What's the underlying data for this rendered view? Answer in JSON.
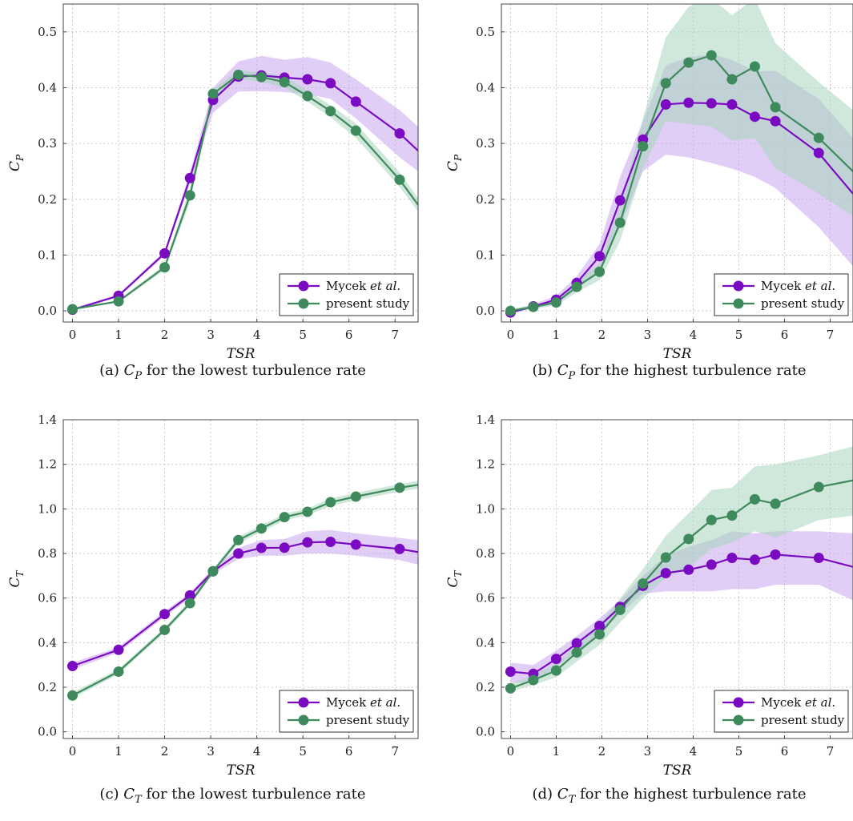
{
  "colors": {
    "mycek": "#7a0bc0",
    "present": "#3f8a5c",
    "mycek_band": "#c9a6ee",
    "present_band": "#a8d5bd"
  },
  "chart_data": [
    {
      "type": "line",
      "caption_prefix": "(a)",
      "caption_var": "C",
      "caption_sub": "P",
      "caption_rest": "for the lowest turbulence rate",
      "xlabel": "TSR",
      "ylabel_main": "C",
      "ylabel_sub": "P",
      "xlim": [
        -0.2,
        7.5
      ],
      "ylim": [
        -0.02,
        0.55
      ],
      "xticks": [
        0,
        1,
        2,
        3,
        4,
        5,
        6,
        7
      ],
      "xtick_labels": [
        "0",
        "1",
        "2",
        "3",
        "4",
        "5",
        "6",
        "7"
      ],
      "yticks": [
        0.0,
        0.1,
        0.2,
        0.3,
        0.4,
        0.5
      ],
      "ytick_labels": [
        "0.0",
        "0.1",
        "0.2",
        "0.3",
        "0.4",
        "0.5"
      ],
      "legend": {
        "placement": "bottom-right",
        "entries": [
          "Mycek et al.",
          "present study"
        ]
      },
      "series": [
        {
          "name": "Mycek et al.",
          "color": "mycek",
          "x": [
            0,
            1,
            2,
            2.55,
            3.05,
            3.6,
            4.1,
            4.6,
            5.1,
            5.6,
            6.15,
            7.1,
            7.5
          ],
          "y": [
            0.002,
            0.027,
            0.103,
            0.238,
            0.378,
            0.42,
            0.422,
            0.418,
            0.415,
            0.408,
            0.375,
            0.318,
            0.287
          ],
          "band_lo": [
            0.002,
            0.025,
            0.099,
            0.228,
            0.355,
            0.393,
            0.394,
            0.392,
            0.388,
            0.38,
            0.345,
            0.275,
            0.25
          ],
          "band_hi": [
            0.004,
            0.03,
            0.107,
            0.248,
            0.4,
            0.447,
            0.457,
            0.45,
            0.455,
            0.445,
            0.415,
            0.36,
            0.33
          ],
          "markers": 12
        },
        {
          "name": "present study",
          "color": "present",
          "x": [
            0,
            1,
            2,
            2.55,
            3.05,
            3.6,
            4.1,
            4.6,
            5.1,
            5.6,
            6.15,
            7.1,
            7.5
          ],
          "y": [
            0.003,
            0.017,
            0.078,
            0.207,
            0.389,
            0.423,
            0.419,
            0.41,
            0.385,
            0.358,
            0.323,
            0.235,
            0.19
          ],
          "band_lo": [
            0.002,
            0.015,
            0.073,
            0.195,
            0.38,
            0.415,
            0.41,
            0.4,
            0.375,
            0.347,
            0.31,
            0.222,
            0.178
          ],
          "band_hi": [
            0.004,
            0.019,
            0.083,
            0.22,
            0.397,
            0.431,
            0.428,
            0.42,
            0.395,
            0.369,
            0.336,
            0.248,
            0.202
          ],
          "markers": 12
        }
      ]
    },
    {
      "type": "line",
      "caption_prefix": "(b)",
      "caption_var": "C",
      "caption_sub": "P",
      "caption_rest": "for the highest turbulence rate",
      "xlabel": "TSR",
      "ylabel_main": "C",
      "ylabel_sub": "P",
      "xlim": [
        -0.2,
        7.5
      ],
      "ylim": [
        -0.02,
        0.55
      ],
      "xticks": [
        0,
        1,
        2,
        3,
        4,
        5,
        6,
        7
      ],
      "xtick_labels": [
        "0",
        "1",
        "2",
        "3",
        "4",
        "5",
        "6",
        "7"
      ],
      "yticks": [
        0.0,
        0.1,
        0.2,
        0.3,
        0.4,
        0.5
      ],
      "ytick_labels": [
        "0.0",
        "0.1",
        "0.2",
        "0.3",
        "0.4",
        "0.5"
      ],
      "legend": {
        "placement": "bottom-right",
        "entries": [
          "Mycek et al.",
          "present study"
        ]
      },
      "series": [
        {
          "name": "Mycek et al.",
          "color": "mycek",
          "x": [
            0,
            0.5,
            1,
            1.45,
            1.95,
            2.4,
            2.9,
            3.4,
            3.9,
            4.4,
            4.85,
            5.35,
            5.8,
            6.75,
            7.5
          ],
          "y": [
            -0.003,
            0.008,
            0.02,
            0.05,
            0.098,
            0.198,
            0.307,
            0.37,
            0.373,
            0.372,
            0.37,
            0.348,
            0.34,
            0.283,
            0.21
          ],
          "band_lo": [
            -0.005,
            0.004,
            0.013,
            0.038,
            0.075,
            0.15,
            0.25,
            0.28,
            0.275,
            0.265,
            0.255,
            0.24,
            0.22,
            0.15,
            0.08
          ],
          "band_hi": [
            0.0,
            0.012,
            0.027,
            0.062,
            0.12,
            0.24,
            0.34,
            0.44,
            0.455,
            0.46,
            0.45,
            0.43,
            0.43,
            0.38,
            0.31
          ],
          "markers": 14
        },
        {
          "name": "present study",
          "color": "present",
          "x": [
            0,
            0.5,
            1,
            1.45,
            1.95,
            2.4,
            2.9,
            3.4,
            3.9,
            4.4,
            4.85,
            5.35,
            5.8,
            6.75,
            7.5
          ],
          "y": [
            0.0,
            0.007,
            0.015,
            0.043,
            0.07,
            0.158,
            0.295,
            0.408,
            0.445,
            0.458,
            0.415,
            0.438,
            0.365,
            0.31,
            0.25
          ],
          "band_lo": [
            -0.003,
            0.003,
            0.01,
            0.033,
            0.055,
            0.125,
            0.255,
            0.34,
            0.335,
            0.33,
            0.305,
            0.31,
            0.255,
            0.21,
            0.17
          ],
          "band_hi": [
            0.003,
            0.011,
            0.02,
            0.053,
            0.085,
            0.19,
            0.345,
            0.49,
            0.545,
            0.56,
            0.53,
            0.56,
            0.48,
            0.41,
            0.36
          ],
          "markers": 14
        }
      ]
    },
    {
      "type": "line",
      "caption_prefix": "(c)",
      "caption_var": "C",
      "caption_sub": "T",
      "caption_rest": "for the lowest turbulence rate",
      "xlabel": "TSR",
      "ylabel_main": "C",
      "ylabel_sub": "T",
      "xlim": [
        -0.2,
        7.5
      ],
      "ylim": [
        -0.03,
        1.4
      ],
      "xticks": [
        0,
        1,
        2,
        3,
        4,
        5,
        6,
        7
      ],
      "xtick_labels": [
        "0",
        "1",
        "2",
        "3",
        "4",
        "5",
        "6",
        "7"
      ],
      "yticks": [
        0.0,
        0.2,
        0.4,
        0.6,
        0.8,
        1.0,
        1.2,
        1.4
      ],
      "ytick_labels": [
        "0.0",
        "0.2",
        "0.4",
        "0.6",
        "0.8",
        "1.0",
        "1.2",
        "1.4"
      ],
      "legend": {
        "placement": "bottom-right",
        "entries": [
          "Mycek et al.",
          "present study"
        ]
      },
      "series": [
        {
          "name": "Mycek et al.",
          "color": "mycek",
          "x": [
            0,
            1,
            2,
            2.55,
            3.05,
            3.6,
            4.1,
            4.6,
            5.1,
            5.6,
            6.15,
            7.1,
            7.5
          ],
          "y": [
            0.295,
            0.368,
            0.528,
            0.612,
            0.72,
            0.8,
            0.825,
            0.826,
            0.85,
            0.852,
            0.84,
            0.82,
            0.806
          ],
          "band_lo": [
            0.28,
            0.355,
            0.515,
            0.6,
            0.707,
            0.775,
            0.79,
            0.79,
            0.8,
            0.8,
            0.79,
            0.77,
            0.75
          ],
          "band_hi": [
            0.31,
            0.38,
            0.541,
            0.624,
            0.733,
            0.825,
            0.86,
            0.865,
            0.9,
            0.905,
            0.89,
            0.87,
            0.86
          ],
          "markers": 12
        },
        {
          "name": "present study",
          "color": "present",
          "x": [
            0,
            1,
            2,
            2.55,
            3.05,
            3.6,
            4.1,
            4.6,
            5.1,
            5.6,
            6.15,
            7.1,
            7.5
          ],
          "y": [
            0.163,
            0.27,
            0.457,
            0.577,
            0.72,
            0.86,
            0.912,
            0.963,
            0.987,
            1.03,
            1.055,
            1.095,
            1.108
          ],
          "band_lo": [
            0.15,
            0.258,
            0.445,
            0.565,
            0.71,
            0.845,
            0.897,
            0.948,
            0.972,
            1.013,
            1.038,
            1.078,
            1.09
          ],
          "band_hi": [
            0.176,
            0.282,
            0.469,
            0.589,
            0.73,
            0.875,
            0.927,
            0.978,
            1.002,
            1.047,
            1.072,
            1.112,
            1.126
          ],
          "markers": 12
        }
      ]
    },
    {
      "type": "line",
      "caption_prefix": "(d)",
      "caption_var": "C",
      "caption_sub": "T",
      "caption_rest": "for the highest turbulence rate",
      "xlabel": "TSR",
      "ylabel_main": "C",
      "ylabel_sub": "T",
      "xlim": [
        -0.2,
        7.5
      ],
      "ylim": [
        -0.03,
        1.4
      ],
      "xticks": [
        0,
        1,
        2,
        3,
        4,
        5,
        6,
        7
      ],
      "xtick_labels": [
        "0",
        "1",
        "2",
        "3",
        "4",
        "5",
        "6",
        "7"
      ],
      "yticks": [
        0.0,
        0.2,
        0.4,
        0.6,
        0.8,
        1.0,
        1.2,
        1.4
      ],
      "ytick_labels": [
        "0.0",
        "0.2",
        "0.4",
        "0.6",
        "0.8",
        "1.0",
        "1.2",
        "1.4"
      ],
      "legend": {
        "placement": "bottom-right",
        "entries": [
          "Mycek et al.",
          "present study"
        ]
      },
      "series": [
        {
          "name": "Mycek et al.",
          "color": "mycek",
          "x": [
            0,
            0.5,
            1,
            1.45,
            1.95,
            2.4,
            2.9,
            3.4,
            3.9,
            4.4,
            4.85,
            5.35,
            5.8,
            6.75,
            7.5
          ],
          "y": [
            0.27,
            0.26,
            0.327,
            0.397,
            0.475,
            0.56,
            0.655,
            0.712,
            0.727,
            0.75,
            0.78,
            0.772,
            0.795,
            0.78,
            0.74
          ],
          "band_lo": [
            0.22,
            0.22,
            0.29,
            0.36,
            0.44,
            0.53,
            0.62,
            0.63,
            0.63,
            0.63,
            0.64,
            0.64,
            0.66,
            0.66,
            0.59
          ],
          "band_hi": [
            0.31,
            0.3,
            0.365,
            0.43,
            0.51,
            0.59,
            0.7,
            0.79,
            0.83,
            0.86,
            0.9,
            0.89,
            0.9,
            0.9,
            0.89
          ],
          "markers": 14
        },
        {
          "name": "present study",
          "color": "present",
          "x": [
            0,
            0.5,
            1,
            1.45,
            1.95,
            2.4,
            2.9,
            3.4,
            3.9,
            4.4,
            4.85,
            5.35,
            5.8,
            6.75,
            7.5
          ],
          "y": [
            0.195,
            0.232,
            0.275,
            0.356,
            0.437,
            0.547,
            0.665,
            0.782,
            0.865,
            0.95,
            0.97,
            1.043,
            1.023,
            1.098,
            1.128
          ],
          "band_lo": [
            0.18,
            0.21,
            0.245,
            0.315,
            0.39,
            0.49,
            0.6,
            0.69,
            0.74,
            0.82,
            0.85,
            0.9,
            0.87,
            0.95,
            0.97
          ],
          "band_hi": [
            0.215,
            0.255,
            0.305,
            0.39,
            0.48,
            0.6,
            0.73,
            0.88,
            0.98,
            1.085,
            1.095,
            1.19,
            1.2,
            1.24,
            1.28
          ],
          "markers": 14
        }
      ]
    }
  ]
}
